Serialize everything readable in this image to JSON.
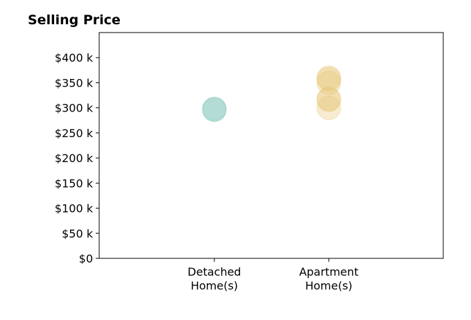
{
  "chart_data": {
    "type": "scatter",
    "title": "Selling Price",
    "xlabel": "",
    "ylabel": "",
    "categories": [
      [
        "Detached",
        "Home(s)"
      ],
      [
        "Apartment",
        "Home(s)"
      ]
    ],
    "y_tick_labels": [
      "$0",
      "$50 k",
      "$100 k",
      "$150 k",
      "$200 k",
      "$250 k",
      "$300 k",
      "$350 k",
      "$400 k"
    ],
    "y_tick_values": [
      0,
      50000,
      100000,
      150000,
      200000,
      250000,
      300000,
      350000,
      400000
    ],
    "ylim": [
      0,
      450000
    ],
    "grid": false,
    "series": [
      {
        "category_index": 0,
        "color": "#7fc4b8",
        "values": [
          296000,
          298000
        ]
      },
      {
        "category_index": 1,
        "color": "#e8c97a",
        "values": [
          300000,
          316000,
          318000,
          350000,
          357000,
          360000
        ]
      }
    ]
  }
}
